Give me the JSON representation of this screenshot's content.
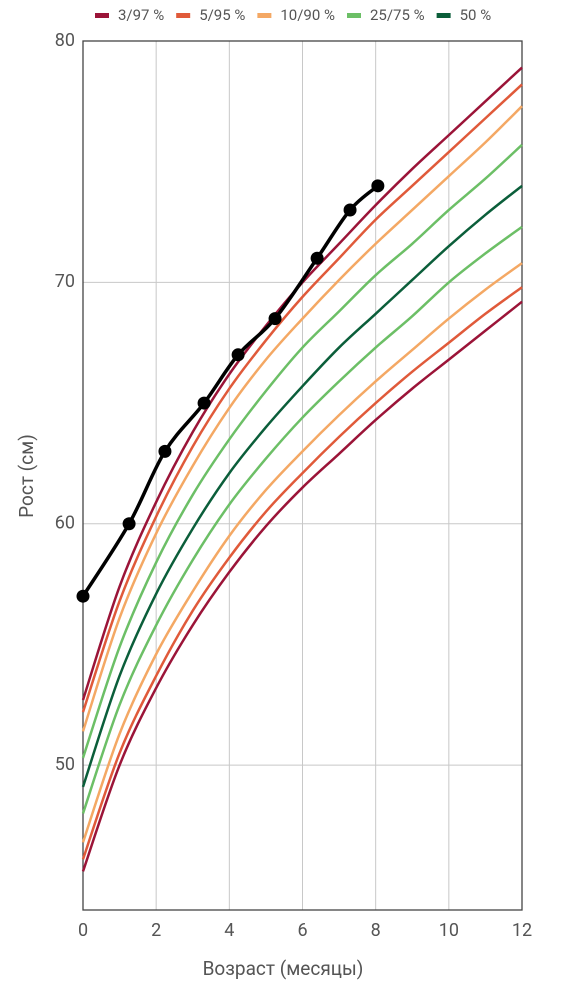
{
  "chart_data": {
    "type": "line",
    "x_label": "Возраст (месяцы)",
    "y_label": "Рост (см)",
    "x": [
      0,
      1,
      2,
      3,
      4,
      5,
      6,
      7,
      8,
      9,
      10,
      11,
      12
    ],
    "series": [
      {
        "name": "3/97 %",
        "color": "#9b1438",
        "lower": [
          45.6,
          50.0,
          53.2,
          55.8,
          58.0,
          59.9,
          61.5,
          62.9,
          64.3,
          65.6,
          66.8,
          68.0,
          69.2
        ],
        "upper": [
          52.7,
          57.4,
          60.9,
          63.8,
          66.2,
          68.2,
          70.0,
          71.6,
          73.2,
          74.7,
          76.1,
          77.5,
          78.9
        ]
      },
      {
        "name": "5/95 %",
        "color": "#e05a3a",
        "lower": [
          46.1,
          50.5,
          53.7,
          56.4,
          58.6,
          60.5,
          62.1,
          63.6,
          65.0,
          66.3,
          67.5,
          68.7,
          69.8
        ],
        "upper": [
          52.2,
          56.8,
          60.3,
          63.2,
          65.6,
          67.6,
          69.4,
          71.0,
          72.6,
          74.0,
          75.4,
          76.8,
          78.2
        ]
      },
      {
        "name": "10/90 %",
        "color": "#f4a864",
        "lower": [
          46.8,
          51.3,
          54.6,
          57.2,
          59.5,
          61.4,
          63.0,
          64.5,
          65.9,
          67.2,
          68.5,
          69.7,
          70.8
        ],
        "upper": [
          51.4,
          56.1,
          59.6,
          62.4,
          64.8,
          66.8,
          68.5,
          70.1,
          71.6,
          73.0,
          74.4,
          75.8,
          77.3
        ]
      },
      {
        "name": "25/75 %",
        "color": "#6cbf66",
        "lower": [
          48.0,
          52.5,
          55.8,
          58.5,
          60.8,
          62.7,
          64.4,
          65.9,
          67.3,
          68.6,
          70.0,
          71.2,
          72.3
        ],
        "upper": [
          50.3,
          54.9,
          58.4,
          61.2,
          63.5,
          65.5,
          67.3,
          68.8,
          70.3,
          71.6,
          73.0,
          74.3,
          75.7
        ]
      },
      {
        "name": "50 %",
        "color": "#0b5e3a",
        "values": [
          49.1,
          53.7,
          57.1,
          59.8,
          62.1,
          64.0,
          65.7,
          67.3,
          68.7,
          70.1,
          71.5,
          72.8,
          74.0
        ]
      }
    ],
    "measurements": {
      "color": "#000000",
      "x": [
        0,
        1.26,
        2.24,
        3.31,
        4.24,
        5.25,
        6.4,
        7.3,
        8.06
      ],
      "values": [
        57.0,
        60.0,
        63.0,
        65.0,
        67.0,
        68.5,
        71.0,
        73.0,
        74.0
      ]
    },
    "xlim": [
      0,
      12
    ],
    "xticks": [
      0,
      2,
      4,
      6,
      8,
      10,
      12
    ],
    "ylim": [
      44,
      80
    ],
    "yticks": [
      50,
      60,
      70,
      80
    ],
    "grid": true
  }
}
